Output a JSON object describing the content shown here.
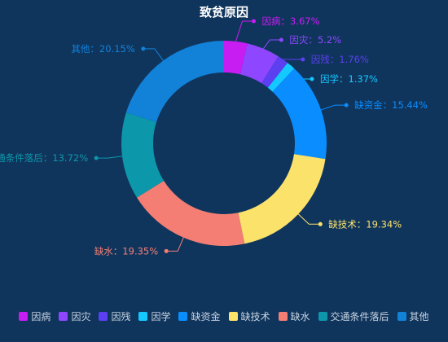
{
  "chart_data": {
    "type": "pie",
    "variant": "donut",
    "title": "致贫原因",
    "label_separator": "：",
    "slices": [
      {
        "name": "因病",
        "value": 3.67,
        "label": "3.67%",
        "color": "#c71cf2"
      },
      {
        "name": "因灾",
        "value": 5.2,
        "label": "5.2%",
        "color": "#8e47ff"
      },
      {
        "name": "因残",
        "value": 1.76,
        "label": "1.76%",
        "color": "#5b3ff0"
      },
      {
        "name": "因学",
        "value": 1.37,
        "label": "1.37%",
        "color": "#13c9ff"
      },
      {
        "name": "缺资金",
        "value": 15.44,
        "label": "15.44%",
        "color": "#0a8dff"
      },
      {
        "name": "缺技术",
        "value": 19.34,
        "label": "19.34%",
        "color": "#fbe26a"
      },
      {
        "name": "缺水",
        "value": 19.35,
        "label": "19.35%",
        "color": "#f47e74"
      },
      {
        "name": "交通条件落后",
        "value": 13.72,
        "label": "13.72%",
        "color": "#0d97aa"
      },
      {
        "name": "其他",
        "value": 20.15,
        "label": "20.15%",
        "color": "#1281d8"
      }
    ],
    "legend_position": "bottom"
  }
}
